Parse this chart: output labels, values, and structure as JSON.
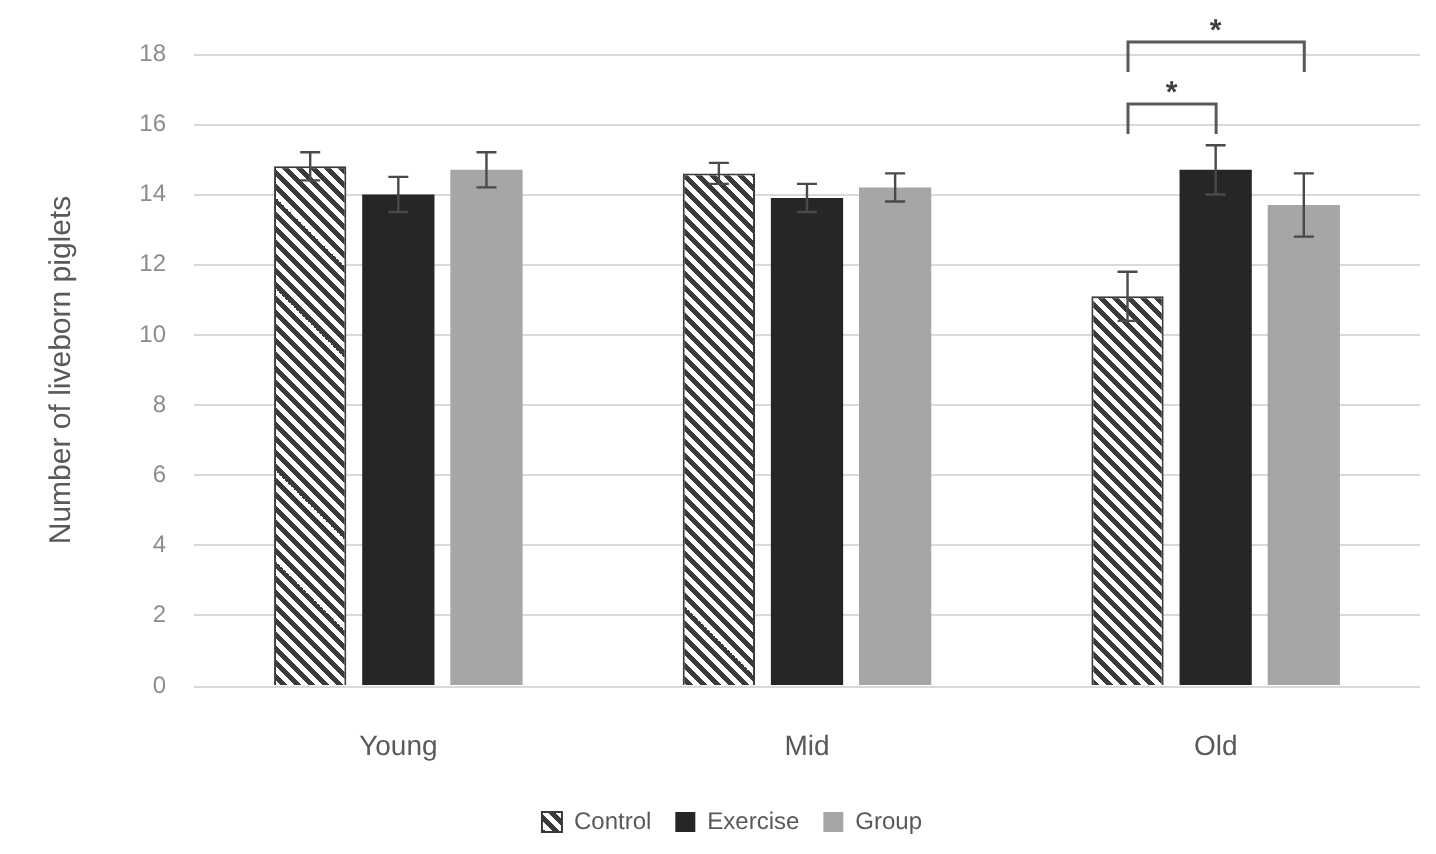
{
  "chart_data": {
    "type": "bar",
    "ylabel": "Number of liveborn piglets",
    "categories": [
      "Young",
      "Mid",
      "Old"
    ],
    "series": [
      {
        "name": "Control",
        "color": "#3a3a3a",
        "values": [
          14.8,
          14.6,
          11.1
        ],
        "errors": [
          0.4,
          0.3,
          0.7
        ]
      },
      {
        "name": "Exercise",
        "color": "#262626",
        "values": [
          14.0,
          13.9,
          14.7
        ],
        "errors": [
          0.5,
          0.4,
          0.7
        ]
      },
      {
        "name": "Group",
        "color": "#a6a6a6",
        "values": [
          14.7,
          14.2,
          13.7
        ],
        "errors": [
          0.5,
          0.4,
          0.9
        ]
      }
    ],
    "ylim": [
      0,
      18
    ],
    "yticks": [
      0,
      2,
      4,
      6,
      8,
      10,
      12,
      14,
      16,
      18
    ],
    "grid": "y",
    "legend": "bottom",
    "annotations": [
      "*",
      "*"
    ]
  }
}
